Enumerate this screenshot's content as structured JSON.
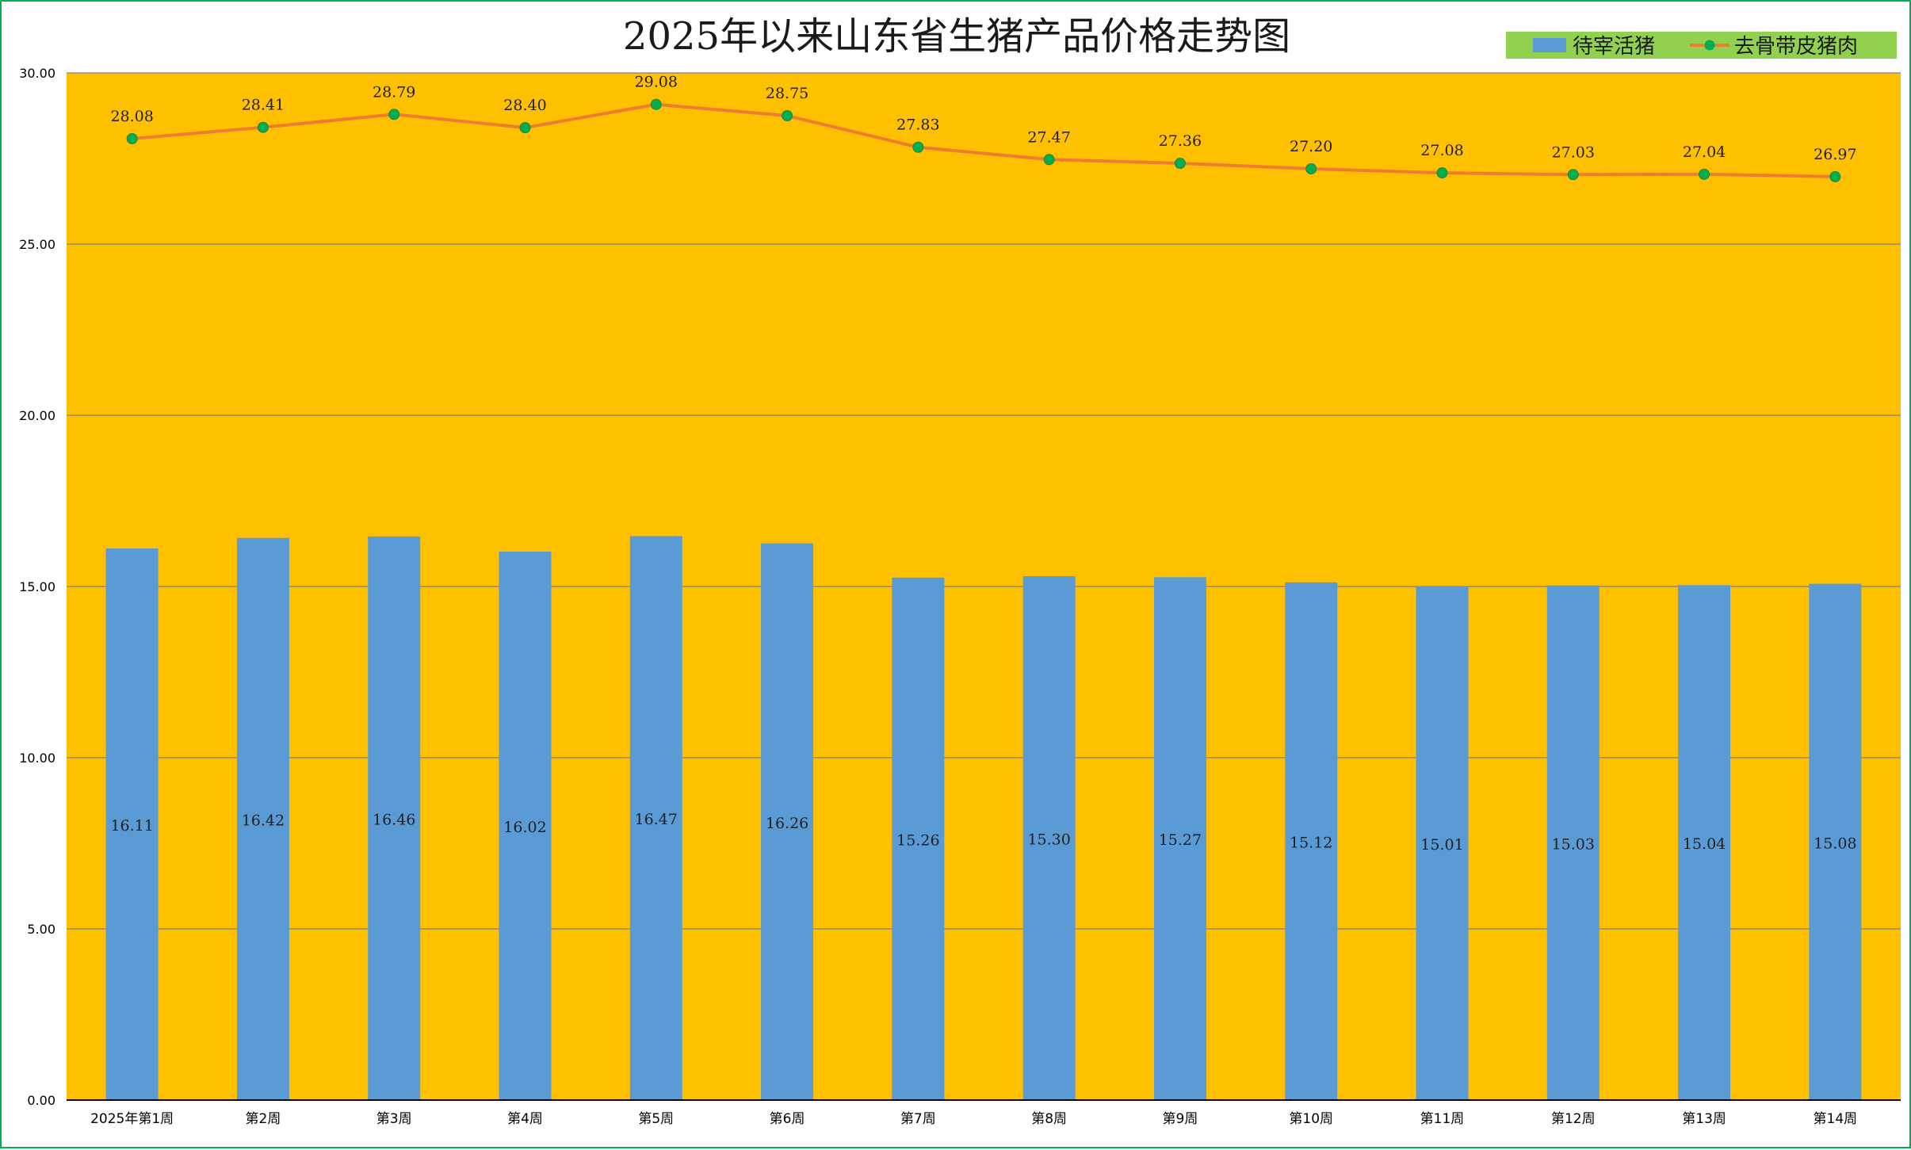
{
  "chart_data": {
    "type": "bar",
    "title": "2025年以来山东省生猪产品价格走势图",
    "categories": [
      "2025年第1周",
      "第2周",
      "第3周",
      "第4周",
      "第5周",
      "第6周",
      "第7周",
      "第8周",
      "第9周",
      "第10周",
      "第11周",
      "第12周",
      "第13周",
      "第14周"
    ],
    "series": [
      {
        "name": "待宰活猪",
        "type": "bar",
        "values": [
          16.11,
          16.42,
          16.46,
          16.02,
          16.47,
          16.26,
          15.26,
          15.3,
          15.27,
          15.12,
          15.01,
          15.03,
          15.04,
          15.08
        ],
        "labels": [
          "16.11",
          "16.42",
          "16.46",
          "16.02",
          "16.47",
          "16.26",
          "15.26",
          "15.30",
          "15.27",
          "15.12",
          "15.01",
          "15.03",
          "15.04",
          "15.08"
        ]
      },
      {
        "name": "去骨带皮猪肉",
        "type": "line",
        "values": [
          28.08,
          28.41,
          28.79,
          28.4,
          29.08,
          28.75,
          27.83,
          27.47,
          27.36,
          27.2,
          27.08,
          27.03,
          27.04,
          26.97
        ],
        "labels": [
          "28.08",
          "28.41",
          "28.79",
          "28.40",
          "29.08",
          "28.75",
          "27.83",
          "27.47",
          "27.36",
          "27.20",
          "27.08",
          "27.03",
          "27.04",
          "26.97"
        ]
      }
    ],
    "ylim": [
      0,
      30
    ],
    "yticks": [
      0,
      5,
      10,
      15,
      20,
      25,
      30
    ],
    "ytick_labels": [
      "0.00",
      "5.00",
      "10.00",
      "15.00",
      "20.00",
      "25.00",
      "30.00"
    ],
    "xlabel": "",
    "ylabel": "",
    "grid": true,
    "legend": "top-right"
  },
  "colors": {
    "plot_background": "#ffc000",
    "bar": "#5b9bd5",
    "line": "#ed7d31",
    "marker": "#00b050",
    "legend_background": "#92d050",
    "gridline": "#7f7f7f",
    "border": "#00b050"
  }
}
